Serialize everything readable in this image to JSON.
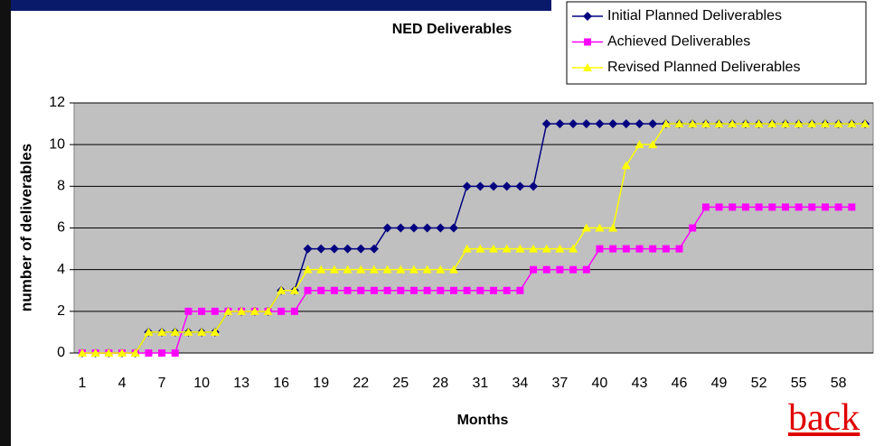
{
  "chart_data": {
    "type": "line",
    "title": "NED Deliverables",
    "x_label": "Months",
    "y_label": "number of deliverables",
    "categories": [
      1,
      null,
      null,
      4,
      null,
      null,
      7,
      null,
      null,
      10,
      null,
      null,
      13,
      null,
      null,
      16,
      null,
      null,
      19,
      null,
      null,
      22,
      null,
      null,
      25,
      null,
      null,
      28,
      null,
      null,
      31,
      null,
      null,
      34,
      null,
      null,
      37,
      null,
      null,
      40,
      null,
      null,
      43,
      null,
      null,
      46,
      null,
      null,
      49,
      null,
      null,
      52,
      null,
      null,
      55,
      null,
      null,
      58,
      null,
      null
    ],
    "series": [
      {
        "name": "Initial Planned Deliverables",
        "color": "#000080",
        "marker": "diamond",
        "values": [
          0,
          0,
          0,
          0,
          0,
          1,
          1,
          1,
          1,
          1,
          1,
          2,
          2,
          2,
          2,
          3,
          3,
          5,
          5,
          5,
          5,
          5,
          5,
          6,
          6,
          6,
          6,
          6,
          6,
          8,
          8,
          8,
          8,
          8,
          8,
          11,
          11,
          11,
          11,
          11,
          11,
          11,
          11,
          11,
          11,
          11,
          11,
          11,
          11,
          11,
          11,
          11,
          11,
          11,
          11,
          11,
          11,
          11,
          11,
          11
        ]
      },
      {
        "name": "Achieved Deliverables",
        "color": "#ff00ff",
        "marker": "square",
        "values": [
          0,
          0,
          0,
          0,
          0,
          0,
          0,
          0,
          2,
          2,
          2,
          2,
          2,
          2,
          2,
          2,
          2,
          3,
          3,
          3,
          3,
          3,
          3,
          3,
          3,
          3,
          3,
          3,
          3,
          3,
          3,
          3,
          3,
          3,
          4,
          4,
          4,
          4,
          4,
          5,
          5,
          5,
          5,
          5,
          5,
          5,
          6,
          7,
          7,
          7,
          7,
          7,
          7,
          7,
          7,
          7,
          7,
          7,
          7,
          null
        ]
      },
      {
        "name": "Revised Planned Deliverables",
        "color": "#ffff00",
        "marker": "triangle",
        "values": [
          0,
          0,
          0,
          0,
          0,
          1,
          1,
          1,
          1,
          1,
          1,
          2,
          2,
          2,
          2,
          3,
          3,
          4,
          4,
          4,
          4,
          4,
          4,
          4,
          4,
          4,
          4,
          4,
          4,
          5,
          5,
          5,
          5,
          5,
          5,
          5,
          5,
          5,
          6,
          6,
          6,
          9,
          10,
          10,
          11,
          11,
          11,
          11,
          11,
          11,
          11,
          11,
          11,
          11,
          11,
          11,
          11,
          11,
          11,
          11
        ]
      }
    ],
    "ylim": [
      0,
      12
    ],
    "yticks": [
      0,
      2,
      4,
      6,
      8,
      10,
      12
    ],
    "grid": true,
    "legend": "top-right"
  },
  "link_text": "back"
}
